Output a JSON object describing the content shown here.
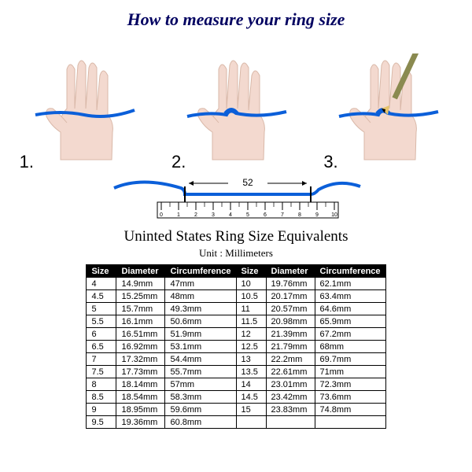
{
  "title": "How to measure your ring size",
  "steps": {
    "one": "1.",
    "two": "2.",
    "three": "3."
  },
  "ruler": {
    "measure_label": "52",
    "ticks": [
      "0",
      "1",
      "2",
      "3",
      "4",
      "5",
      "6",
      "7",
      "8",
      "9",
      "10"
    ]
  },
  "table": {
    "heading": "Uninted States Ring Size Equivalents",
    "unit": "Unit : Millimeters",
    "headers": {
      "size": "Size",
      "diameter": "Diameter",
      "circumference": "Circumference"
    },
    "left_rows": [
      {
        "size": "4",
        "dia": "14.9mm",
        "circ": "47mm"
      },
      {
        "size": "4.5",
        "dia": "15.25mm",
        "circ": "48mm"
      },
      {
        "size": "5",
        "dia": "15.7mm",
        "circ": "49.3mm"
      },
      {
        "size": "5.5",
        "dia": "16.1mm",
        "circ": "50.6mm"
      },
      {
        "size": "6",
        "dia": "16.51mm",
        "circ": "51.9mm"
      },
      {
        "size": "6.5",
        "dia": "16.92mm",
        "circ": "53.1mm"
      },
      {
        "size": "7",
        "dia": "17.32mm",
        "circ": "54.4mm"
      },
      {
        "size": "7.5",
        "dia": "17.73mm",
        "circ": "55.7mm"
      },
      {
        "size": "8",
        "dia": "18.14mm",
        "circ": "57mm"
      },
      {
        "size": "8.5",
        "dia": "18.54mm",
        "circ": "58.3mm"
      },
      {
        "size": "9",
        "dia": "18.95mm",
        "circ": "59.6mm"
      },
      {
        "size": "9.5",
        "dia": "19.36mm",
        "circ": "60.8mm"
      }
    ],
    "right_rows": [
      {
        "size": "10",
        "dia": "19.76mm",
        "circ": "62.1mm"
      },
      {
        "size": "10.5",
        "dia": "20.17mm",
        "circ": "63.4mm"
      },
      {
        "size": "11",
        "dia": "20.57mm",
        "circ": "64.6mm"
      },
      {
        "size": "11.5",
        "dia": "20.98mm",
        "circ": "65.9mm"
      },
      {
        "size": "12",
        "dia": "21.39mm",
        "circ": "67.2mm"
      },
      {
        "size": "12.5",
        "dia": "21.79mm",
        "circ": "68mm"
      },
      {
        "size": "13",
        "dia": "22.2mm",
        "circ": "69.7mm"
      },
      {
        "size": "13.5",
        "dia": "22.61mm",
        "circ": "71mm"
      },
      {
        "size": "14",
        "dia": "23.01mm",
        "circ": "72.3mm"
      },
      {
        "size": "14.5",
        "dia": "23.42mm",
        "circ": "73.6mm"
      },
      {
        "size": "15",
        "dia": "23.83mm",
        "circ": "74.8mm"
      },
      {
        "size": "",
        "dia": "",
        "circ": ""
      }
    ]
  },
  "colors": {
    "skin": "#f3d9cf",
    "skin_stroke": "#d9b8a8",
    "string": "#0b5fd9",
    "title": "#000060",
    "pencil_body": "#8a8a50",
    "pencil_tip": "#e6c36a"
  }
}
